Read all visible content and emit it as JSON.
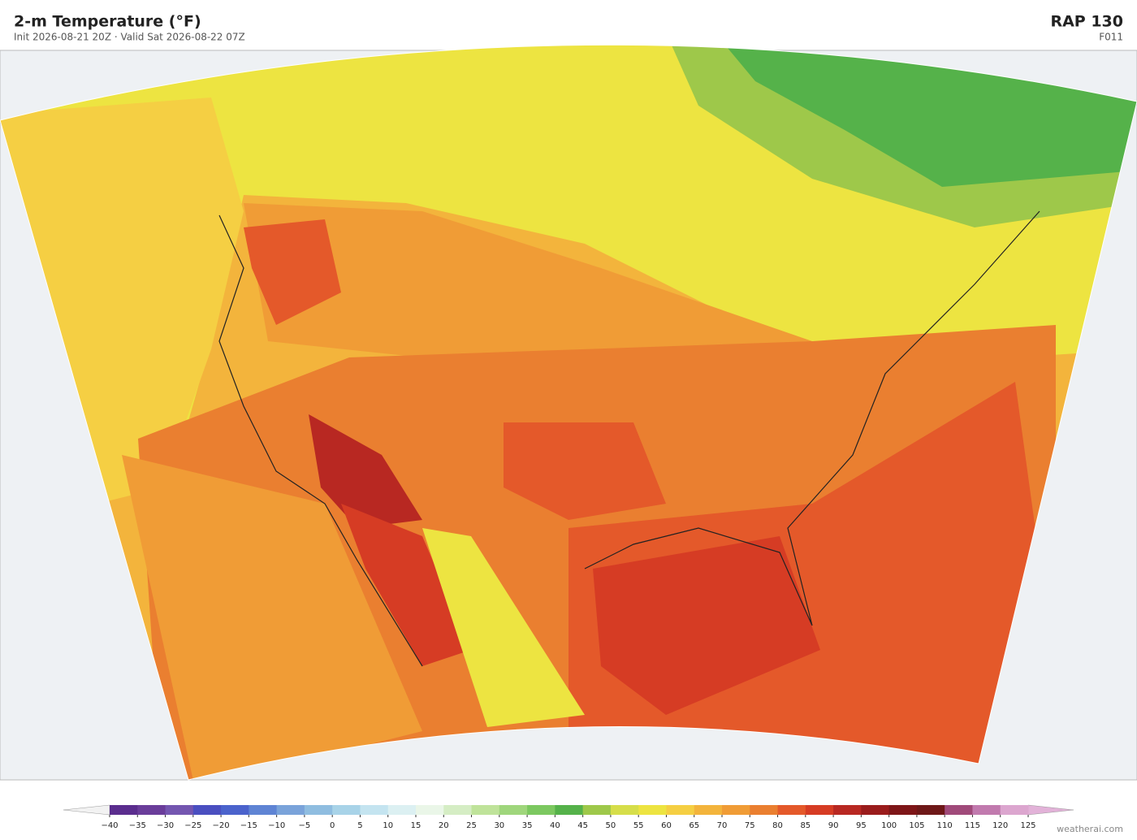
{
  "header": {
    "title": "2-m Temperature  (°F)",
    "subtitle": "Init 2026-08-21 20Z  ·  Valid Sat 2026-08-22 07Z",
    "model": "RAP  130",
    "forecast_hour": "F011"
  },
  "colorbar": {
    "ticks": [
      "−40",
      "−35",
      "−30",
      "−25",
      "−20",
      "−15",
      "−10",
      "−5",
      "0",
      "5",
      "10",
      "15",
      "20",
      "25",
      "30",
      "35",
      "40",
      "45",
      "50",
      "55",
      "60",
      "65",
      "70",
      "75",
      "80",
      "85",
      "90",
      "95",
      "100",
      "105",
      "110",
      "115",
      "120",
      "125"
    ],
    "colors": [
      "#5b2d8e",
      "#6a3d9a",
      "#7456b0",
      "#4a4fc0",
      "#4b63cc",
      "#5f84d4",
      "#7aa3da",
      "#8fbde0",
      "#a8d3e8",
      "#c4e4f0",
      "#dcf0f2",
      "#eaf6e8",
      "#d5edc4",
      "#bfe39a",
      "#9fd67c",
      "#7cc860",
      "#55b24a",
      "#9ec84a",
      "#d6de4a",
      "#ede441",
      "#f5cf43",
      "#f3b43c",
      "#f09c36",
      "#ea7f30",
      "#e4592a",
      "#d63c24",
      "#b82822",
      "#9a1c1c",
      "#7e1618",
      "#6e1818",
      "#a04a7a",
      "#c17aae",
      "#dca6cf"
    ],
    "under_color": "#f2f2f2",
    "over_color": "#e2b2d8"
  },
  "footer": {
    "credit": "weatherai.com"
  }
}
